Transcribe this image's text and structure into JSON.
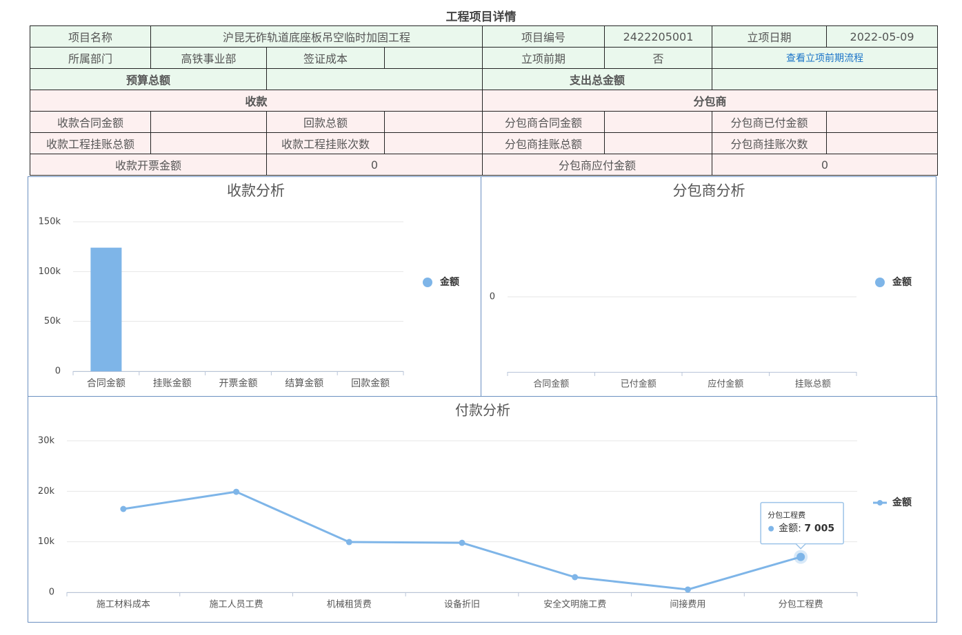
{
  "title": "工程项目详情",
  "table": {
    "rows": [
      [
        "项目名称",
        "沪昆无砟轨道底座板吊空临时加固工程",
        "项目编号",
        "2422205001",
        "立项日期",
        "2022-05-09"
      ],
      [
        "所属部门",
        "高铁事业部",
        "签证成本",
        "立项前期",
        "否",
        "查看立项前期流程"
      ],
      [
        "预算总额",
        "支出总金额"
      ],
      [
        "收款",
        "分包商"
      ],
      [
        "收款合同金额",
        "回款总额",
        "分包商合同金额",
        "分包商已付金额"
      ],
      [
        "收款工程挂账总额",
        "收款工程挂账次数",
        "分包商挂账总额",
        "分包商挂账次数"
      ],
      [
        "收款开票金额",
        "0",
        "分包商应付金额",
        "0"
      ]
    ]
  },
  "chart_data": [
    {
      "type": "bar",
      "title": "收款分析",
      "categories": [
        "合同金额",
        "挂账金额",
        "开票金额",
        "结算金额",
        "回款金额"
      ],
      "series": [
        {
          "name": "金额",
          "color": "#7eb5e8",
          "values": [
            124000,
            0,
            0,
            0,
            0
          ]
        }
      ],
      "ylim": [
        0,
        150000
      ],
      "yticks": [
        0,
        {
          "value": 50000,
          "label": "50k"
        },
        {
          "value": 100000,
          "label": "100k"
        },
        {
          "value": 150000,
          "label": "150k"
        }
      ],
      "grid": true,
      "legend": "right"
    },
    {
      "type": "bar",
      "title": "分包商分析",
      "categories": [
        "合同金额",
        "已付金额",
        "应付金额",
        "挂账总额"
      ],
      "series": [
        {
          "name": "金额",
          "color": "#7eb5e8",
          "values": [
            0,
            0,
            0,
            0
          ]
        }
      ],
      "ylim": [
        -1,
        1
      ],
      "yticks": [
        0
      ],
      "grid": true,
      "legend": "right"
    },
    {
      "type": "line",
      "title": "付款分析",
      "categories": [
        "施工材料成本",
        "施工人员工费",
        "机械租赁费",
        "设备折旧",
        "安全文明施工费",
        "间接费用",
        "分包工程费"
      ],
      "series": [
        {
          "name": "金额",
          "color": "#7eb5e8",
          "values": [
            16500,
            19900,
            9950,
            9800,
            3000,
            550,
            7005
          ]
        }
      ],
      "ylim": [
        0,
        30000
      ],
      "yticks": [
        0,
        {
          "value": 10000,
          "label": "10k"
        },
        {
          "value": 20000,
          "label": "20k"
        },
        {
          "value": 30000,
          "label": "30k"
        }
      ],
      "grid": true,
      "legend": "right",
      "tooltip": {
        "category": "分包工程费",
        "series": "金额",
        "value_label": "7 005"
      }
    }
  ]
}
